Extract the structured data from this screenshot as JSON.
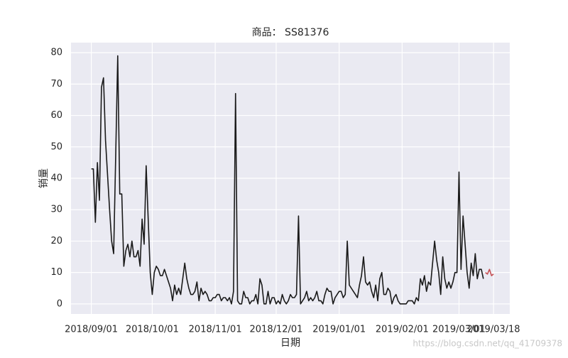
{
  "chart_data": {
    "type": "line",
    "title": "商品： SS81376",
    "xlabel": "日期",
    "ylabel": "销量",
    "watermark": "https://blog.csdn.net/qq_41709378",
    "grid": true,
    "xlim": [
      "2018-08-22",
      "2019-03-26"
    ],
    "xticks": [
      {
        "value": "2018-09-01",
        "label": "2018/09/01"
      },
      {
        "value": "2018-10-01",
        "label": "2018/10/01"
      },
      {
        "value": "2018-11-01",
        "label": "2018/11/01"
      },
      {
        "value": "2018-12-01",
        "label": "2018/12/01"
      },
      {
        "value": "2019-01-01",
        "label": "2019/01/01"
      },
      {
        "value": "2019-02-01",
        "label": "2019/02/01"
      },
      {
        "value": "2019-03-01",
        "label": "2019/03/01"
      },
      {
        "value": "2019-03-18",
        "label": "2019/03/18"
      }
    ],
    "ylim": [
      -3.2,
      83.2
    ],
    "yticks": [
      0,
      10,
      20,
      30,
      40,
      50,
      60,
      70,
      80
    ],
    "series": [
      {
        "color": "#1a1a1a",
        "x": [
          "2018-09-01",
          "2018-09-02",
          "2018-09-03",
          "2018-09-04",
          "2018-09-05",
          "2018-09-06",
          "2018-09-07",
          "2018-09-08",
          "2018-09-09",
          "2018-09-10",
          "2018-09-11",
          "2018-09-12",
          "2018-09-13",
          "2018-09-14",
          "2018-09-15",
          "2018-09-16",
          "2018-09-17",
          "2018-09-18",
          "2018-09-19",
          "2018-09-20",
          "2018-09-21",
          "2018-09-22",
          "2018-09-23",
          "2018-09-24",
          "2018-09-25",
          "2018-09-26",
          "2018-09-27",
          "2018-09-28",
          "2018-09-29",
          "2018-09-30",
          "2018-10-01",
          "2018-10-02",
          "2018-10-03",
          "2018-10-04",
          "2018-10-05",
          "2018-10-06",
          "2018-10-07",
          "2018-10-08",
          "2018-10-09",
          "2018-10-10",
          "2018-10-11",
          "2018-10-12",
          "2018-10-13",
          "2018-10-14",
          "2018-10-15",
          "2018-10-16",
          "2018-10-17",
          "2018-10-18",
          "2018-10-19",
          "2018-10-20",
          "2018-10-21",
          "2018-10-22",
          "2018-10-23",
          "2018-10-24",
          "2018-10-25",
          "2018-10-26",
          "2018-10-27",
          "2018-10-28",
          "2018-10-29",
          "2018-10-30",
          "2018-10-31",
          "2018-11-01",
          "2018-11-02",
          "2018-11-03",
          "2018-11-04",
          "2018-11-05",
          "2018-11-06",
          "2018-11-07",
          "2018-11-08",
          "2018-11-09",
          "2018-11-10",
          "2018-11-11",
          "2018-11-12",
          "2018-11-13",
          "2018-11-14",
          "2018-11-15",
          "2018-11-16",
          "2018-11-17",
          "2018-11-18",
          "2018-11-19",
          "2018-11-20",
          "2018-11-21",
          "2018-11-22",
          "2018-11-23",
          "2018-11-24",
          "2018-11-25",
          "2018-11-26",
          "2018-11-27",
          "2018-11-28",
          "2018-11-29",
          "2018-11-30",
          "2018-12-01",
          "2018-12-02",
          "2018-12-03",
          "2018-12-04",
          "2018-12-05",
          "2018-12-06",
          "2018-12-07",
          "2018-12-08",
          "2018-12-09",
          "2018-12-10",
          "2018-12-11",
          "2018-12-12",
          "2018-12-13",
          "2018-12-14",
          "2018-12-15",
          "2018-12-16",
          "2018-12-17",
          "2018-12-18",
          "2018-12-19",
          "2018-12-20",
          "2018-12-21",
          "2018-12-22",
          "2018-12-23",
          "2018-12-24",
          "2018-12-25",
          "2018-12-26",
          "2018-12-27",
          "2018-12-28",
          "2018-12-29",
          "2018-12-30",
          "2018-12-31",
          "2019-01-01",
          "2019-01-02",
          "2019-01-03",
          "2019-01-04",
          "2019-01-05",
          "2019-01-06",
          "2019-01-07",
          "2019-01-08",
          "2019-01-09",
          "2019-01-10",
          "2019-01-11",
          "2019-01-12",
          "2019-01-13",
          "2019-01-14",
          "2019-01-15",
          "2019-01-16",
          "2019-01-17",
          "2019-01-18",
          "2019-01-19",
          "2019-01-20",
          "2019-01-21",
          "2019-01-22",
          "2019-01-23",
          "2019-01-24",
          "2019-01-25",
          "2019-01-26",
          "2019-01-27",
          "2019-01-28",
          "2019-01-29",
          "2019-01-30",
          "2019-01-31",
          "2019-02-01",
          "2019-02-02",
          "2019-02-03",
          "2019-02-04",
          "2019-02-05",
          "2019-02-06",
          "2019-02-07",
          "2019-02-08",
          "2019-02-09",
          "2019-02-10",
          "2019-02-11",
          "2019-02-12",
          "2019-02-13",
          "2019-02-14",
          "2019-02-15",
          "2019-02-16",
          "2019-02-17",
          "2019-02-18",
          "2019-02-19",
          "2019-02-20",
          "2019-02-21",
          "2019-02-22",
          "2019-02-23",
          "2019-02-24",
          "2019-02-25",
          "2019-02-26",
          "2019-02-27",
          "2019-02-28",
          "2019-03-01",
          "2019-03-02",
          "2019-03-03",
          "2019-03-04",
          "2019-03-05",
          "2019-03-06",
          "2019-03-07",
          "2019-03-08",
          "2019-03-09",
          "2019-03-10",
          "2019-03-11",
          "2019-03-12",
          "2019-03-13"
        ],
        "values": [
          43,
          43,
          26,
          45,
          33,
          69,
          72,
          52,
          41,
          30,
          20,
          16,
          47,
          79,
          35,
          35,
          12,
          17,
          19,
          15,
          20,
          15,
          15,
          17,
          12,
          27,
          19,
          44,
          27,
          10,
          3,
          10,
          12,
          11,
          9,
          9,
          11,
          9,
          7,
          5,
          1,
          6,
          3,
          5,
          3,
          8,
          13,
          8,
          5,
          3,
          3,
          4,
          7,
          1,
          5,
          3,
          4,
          3,
          1,
          1,
          2,
          2,
          3,
          3,
          1,
          2,
          2,
          1,
          2,
          0,
          4,
          67,
          1,
          0,
          0,
          4,
          2,
          2,
          0,
          1,
          1,
          3,
          0,
          8,
          6,
          0,
          0,
          4,
          0,
          2,
          2,
          0,
          1,
          0,
          3,
          1,
          0,
          1,
          3,
          2,
          2,
          3,
          28,
          0,
          1,
          2,
          4,
          1,
          2,
          1,
          2,
          4,
          1,
          1,
          0,
          3,
          5,
          4,
          4,
          0,
          2,
          3,
          4,
          4,
          2,
          3,
          20,
          6,
          5,
          4,
          3,
          2,
          6,
          9,
          15,
          7,
          6,
          7,
          4,
          2,
          6,
          1,
          8,
          10,
          3,
          3,
          5,
          4,
          0,
          2,
          3,
          1,
          0,
          0,
          0,
          0,
          1,
          1,
          1,
          0,
          2,
          1,
          8,
          6,
          9,
          4,
          7,
          6,
          13,
          20,
          14,
          10,
          3,
          15,
          8,
          5,
          7,
          5,
          7,
          10,
          10,
          42,
          11,
          28,
          19,
          10,
          5,
          13,
          9,
          16,
          8,
          11,
          11,
          8
        ]
      },
      {
        "color": "#c44e52",
        "x": [
          "2019-03-14",
          "2019-03-15",
          "2019-03-16",
          "2019-03-17",
          "2019-03-18"
        ],
        "values": [
          10,
          9.5,
          11,
          9,
          9.5
        ]
      }
    ]
  }
}
